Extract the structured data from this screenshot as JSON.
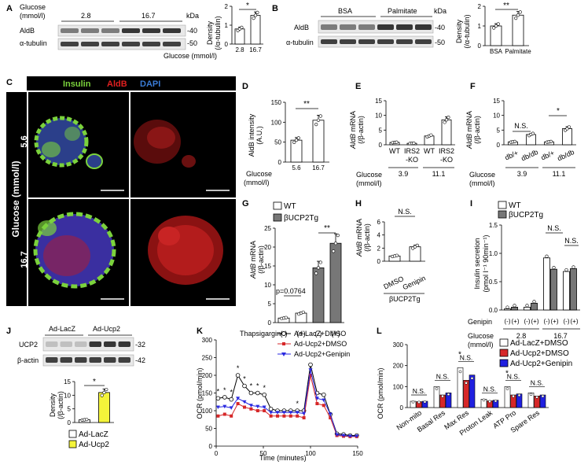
{
  "panels": {
    "A": {
      "letter": "A",
      "glucose_label": "Glucose",
      "glucose_unit": "(mmol/l)",
      "conc": [
        "2.8",
        "16.7"
      ],
      "kda": "kDa",
      "rows": [
        "AldB",
        "α-tubulin"
      ],
      "markers": [
        "-40",
        "-50"
      ],
      "ylabel": "Density",
      "ylabel2": "(/α-tubulin)",
      "xlabel": "Glucose (mmol/l)",
      "sig": "*"
    },
    "B": {
      "letter": "B",
      "conds": [
        "BSA",
        "Palmitate"
      ],
      "kda": "kDa",
      "rows": [
        "AldB",
        "α-tubulin"
      ],
      "markers": [
        "-40",
        "-50"
      ],
      "ylabel": "Density",
      "ylabel2": "(/α-tubulin)",
      "sig": "**"
    },
    "C": {
      "letter": "C",
      "stains": [
        "Insulin",
        "AldB",
        "DAPI"
      ],
      "stain_colors": [
        "#7bd23c",
        "#e02020",
        "#3a7bd5"
      ],
      "side": "Glucose (mmol/l)",
      "rows": [
        "5.6",
        "16.7"
      ]
    },
    "D": {
      "letter": "D",
      "ylabel": "AldB intensity",
      "ylabel2": "(A.U.)",
      "xl1": "Glucose",
      "xl2": "(mmol/l)",
      "sig": "**"
    },
    "E": {
      "letter": "E",
      "ylabel_i": "AldB",
      "ylabel_r": " mRNA",
      "ylabel2": "(/β-actin)",
      "xl1": "Glucose",
      "xl2": "(mmol/l)",
      "genos": [
        "WT",
        "IRS2",
        "WT",
        "IRS2"
      ],
      "ko": "-KO",
      "gluc": [
        "3.9",
        "11.1"
      ]
    },
    "F": {
      "letter": "F",
      "ylabel_i": "AldB",
      "ylabel_r": " mRNA",
      "ylabel2": "(/β-actin)",
      "xl1": "Glucose",
      "xl2": "(mmol/l)",
      "genos": [
        "db/+",
        "db/db",
        "db/+",
        "db/db"
      ],
      "gluc": [
        "3.9",
        "11.1"
      ],
      "ns": "N.S.",
      "sig": "*"
    },
    "G": {
      "letter": "G",
      "ylabel_i": "AldB",
      "ylabel_r": " mRNA",
      "ylabel2": "(/β-actin)",
      "legend": [
        "WT",
        "βUCP2Tg"
      ],
      "pval": "p=0.0764",
      "sig": "**",
      "xl": "Thapsigargin",
      "treat": [
        "(-)",
        "(+)",
        "(-)",
        "(+)"
      ]
    },
    "H": {
      "letter": "H",
      "ylabel_i": "AldB",
      "ylabel_r": " mRNA",
      "ylabel2": "(/β-actin)",
      "ns": "N.S.",
      "conds": [
        "DMSO",
        "Genipin"
      ],
      "group": "βUCP2Tg"
    },
    "I": {
      "letter": "I",
      "legend": [
        "WT",
        "βUCP2Tg"
      ],
      "ylabel": "Insulin secretion",
      "ylabel2": "(pmol I⁻¹ 90min⁻¹)",
      "ns": "N.S.",
      "genipin": "Genipin",
      "xl1": "Glucose",
      "xl2": "(mmol/l)",
      "gluc": [
        "2.8",
        "16.7"
      ]
    },
    "J": {
      "letter": "J",
      "lanes": [
        "Ad-LacZ",
        "Ad-Ucp2"
      ],
      "rows": [
        "UCP2",
        "β-actin"
      ],
      "markers": [
        "-32",
        "-42"
      ],
      "ylabel": "Density",
      "ylabel2": "(/β-actin)",
      "sig": "*",
      "legend": [
        "Ad-LacZ",
        "Ad-Ucp2"
      ]
    },
    "K": {
      "letter": "K",
      "ylabel": "OCR (pmol/min)",
      "xlabel": "Time (minutes)",
      "legend": [
        "Ad-LacZ+DMSO",
        "Ad-Ucp2+DMSO",
        "Ad-Ucp2+Genipin"
      ],
      "sig": "*"
    },
    "L": {
      "letter": "L",
      "ylabel": "OCR (pmol/min)",
      "legend": [
        "Ad-LacZ+DMSO",
        "Ad-Ucp2+DMSO",
        "Ad-Ucp2+Genipin"
      ],
      "ns": "N.S.",
      "sig": "*"
    }
  },
  "colors": {
    "wt_bar": "#ffffff",
    "tg_bar": "#777777",
    "lacz": "#000000",
    "ucp2": "#d62728",
    "genipin": "#2a2ae0",
    "yellow": "#f4f43a",
    "red_bar": "#d62728",
    "blue_bar": "#2020e0"
  },
  "chart_data": [
    {
      "panel": "A",
      "type": "bar",
      "categories": [
        "2.8",
        "16.7"
      ],
      "values": [
        1.0,
        1.9
      ],
      "ylim": [
        0,
        2.5
      ],
      "yticks": [
        "0",
        "1",
        "2"
      ]
    },
    {
      "panel": "B",
      "type": "bar",
      "categories": [
        "BSA",
        "Palmitate"
      ],
      "values": [
        1.0,
        1.55
      ],
      "ylim": [
        0,
        2
      ],
      "yticks": [
        "0",
        "1",
        "2"
      ]
    },
    {
      "panel": "D",
      "type": "bar",
      "categories": [
        "5.6",
        "16.7"
      ],
      "values": [
        55,
        105
      ],
      "ylim": [
        0,
        150
      ],
      "yticks": [
        "0",
        "50",
        "100",
        "150"
      ]
    },
    {
      "panel": "E",
      "type": "bar",
      "categories": [
        "WT 3.9",
        "IRS2-KO 3.9",
        "WT 11.1",
        "IRS2-KO 11.1"
      ],
      "values": [
        0.8,
        0.5,
        3.0,
        8.5
      ],
      "ylim": [
        0,
        15
      ],
      "yticks": [
        "0",
        "5",
        "10",
        "15"
      ]
    },
    {
      "panel": "F",
      "type": "bar",
      "categories": [
        "db/+ 3.9",
        "db/db 3.9",
        "db/+ 11.1",
        "db/db 11.1"
      ],
      "values": [
        1.0,
        3.5,
        1.0,
        5.5
      ],
      "ylim": [
        0,
        15
      ],
      "yticks": [
        "0",
        "5",
        "10",
        "15"
      ]
    },
    {
      "panel": "G",
      "type": "bar",
      "categories": [
        "WT (-)",
        "WT (+)",
        "βUCP2Tg (-)",
        "βUCP2Tg (+)"
      ],
      "values": [
        1.2,
        2.5,
        14.5,
        21.0
      ],
      "ylim": [
        0,
        25
      ],
      "yticks": [
        "0",
        "5",
        "10",
        "15",
        "20",
        "25"
      ]
    },
    {
      "panel": "H",
      "type": "bar",
      "categories": [
        "DMSO",
        "Genipin"
      ],
      "values": [
        0.8,
        2.2
      ],
      "ylim": [
        0,
        6
      ],
      "yticks": [
        "0",
        "2",
        "4",
        "6"
      ]
    },
    {
      "panel": "I",
      "type": "bar",
      "series": [
        {
          "name": "WT",
          "values": [
            0.02,
            0.05,
            0.92,
            0.68
          ]
        },
        {
          "name": "βUCP2Tg",
          "values": [
            0.05,
            0.12,
            0.72,
            0.73
          ]
        }
      ],
      "categories": [
        "2.8 (-)",
        "2.8 (+)",
        "16.7 (-)",
        "16.7 (+)"
      ],
      "ylim": [
        0,
        1.5
      ],
      "yticks": [
        "0.0",
        "0.5",
        "1.0",
        "1.5"
      ]
    },
    {
      "panel": "J",
      "type": "bar",
      "categories": [
        "Ad-LacZ",
        "Ad-Ucp2"
      ],
      "values": [
        1.0,
        11.0
      ],
      "ylim": [
        0,
        15
      ],
      "yticks": [
        "0",
        "5",
        "10",
        "15"
      ]
    },
    {
      "panel": "K",
      "type": "line",
      "x": [
        2,
        9,
        16,
        23,
        30,
        37,
        44,
        51,
        58,
        65,
        72,
        79,
        86,
        93,
        100,
        107,
        114,
        121,
        128,
        135,
        142,
        149
      ],
      "series": [
        {
          "name": "Ad-LacZ+DMSO",
          "values": [
            135,
            138,
            132,
            200,
            170,
            150,
            150,
            145,
            105,
            100,
            100,
            100,
            100,
            100,
            230,
            150,
            145,
            90,
            35,
            33,
            30,
            30
          ]
        },
        {
          "name": "Ad-Ucp2+DMSO",
          "values": [
            85,
            90,
            85,
            120,
            110,
            105,
            100,
            100,
            85,
            85,
            85,
            85,
            85,
            80,
            200,
            120,
            115,
            80,
            30,
            28,
            27,
            27
          ]
        },
        {
          "name": "Ad-Ucp2+Genipin",
          "values": [
            110,
            112,
            108,
            135,
            125,
            115,
            112,
            110,
            95,
            95,
            95,
            95,
            95,
            92,
            215,
            135,
            130,
            90,
            32,
            30,
            28,
            28
          ]
        }
      ],
      "ylim": [
        0,
        300
      ],
      "xlim": [
        0,
        150
      ],
      "yticks": [
        "0",
        "50",
        "100",
        "150",
        "200",
        "250",
        "300"
      ],
      "xticks": [
        "0",
        "50",
        "100",
        "150"
      ]
    },
    {
      "panel": "L",
      "type": "bar",
      "categories": [
        "Non-mito",
        "Basal Res",
        "Max Res",
        "Proton Leak",
        "ATP Pro",
        "Spare Res"
      ],
      "series": [
        {
          "name": "Ad-LacZ+DMSO",
          "values": [
            30,
            100,
            190,
            40,
            100,
            70
          ]
        },
        {
          "name": "Ad-Ucp2+DMSO",
          "values": [
            28,
            60,
            130,
            32,
            60,
            55
          ]
        },
        {
          "name": "Ad-Ucp2+Genipin",
          "values": [
            30,
            70,
            155,
            35,
            65,
            60
          ]
        }
      ],
      "ylim": [
        0,
        300
      ],
      "yticks": [
        "0",
        "100",
        "200",
        "300"
      ]
    }
  ]
}
